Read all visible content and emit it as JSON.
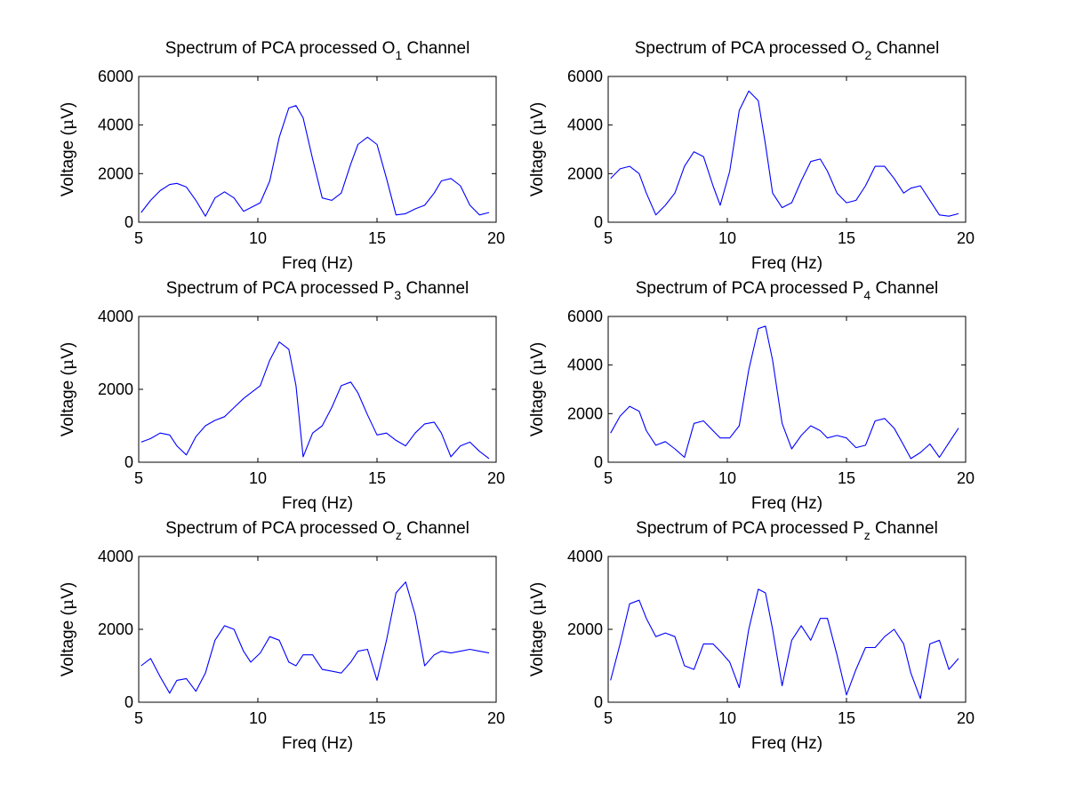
{
  "figure": {
    "background": "#ffffff",
    "line_color": "#0000ff"
  },
  "chart_data": [
    {
      "type": "line",
      "title": {
        "prefix": "Spectrum of PCA processed O",
        "sub": "1",
        "suffix": " Channel"
      },
      "xlabel": "Freq (Hz)",
      "ylabel": {
        "prefix": "Voltage (",
        "mu": "μ",
        "suffix": "V)"
      },
      "xlim": [
        5,
        20
      ],
      "ylim": [
        0,
        6000
      ],
      "xticks": [
        5,
        10,
        15,
        20
      ],
      "yticks": [
        0,
        2000,
        4000,
        6000
      ],
      "grid": false,
      "series": [
        {
          "x": [
            5.1,
            5.5,
            5.9,
            6.3,
            6.6,
            7.0,
            7.4,
            7.8,
            8.2,
            8.6,
            9.0,
            9.4,
            9.7,
            10.1,
            10.5,
            10.9,
            11.3,
            11.6,
            11.9,
            12.3,
            12.7,
            13.1,
            13.5,
            13.9,
            14.2,
            14.6,
            15.0,
            15.4,
            15.8,
            16.2,
            16.6,
            17.0,
            17.4,
            17.7,
            18.1,
            18.5,
            18.9,
            19.3,
            19.7
          ],
          "y": [
            400,
            900,
            1300,
            1550,
            1600,
            1450,
            900,
            250,
            1000,
            1250,
            1000,
            450,
            600,
            800,
            1700,
            3500,
            4700,
            4800,
            4300,
            2600,
            1000,
            900,
            1200,
            2400,
            3200,
            3500,
            3200,
            1800,
            300,
            350,
            550,
            700,
            1200,
            1700,
            1800,
            1500,
            700,
            300,
            400
          ]
        }
      ]
    },
    {
      "type": "line",
      "title": {
        "prefix": "Spectrum of PCA processed O",
        "sub": "2",
        "suffix": " Channel"
      },
      "xlabel": "Freq (Hz)",
      "ylabel": {
        "prefix": "Voltage (",
        "mu": "μ",
        "suffix": "V)"
      },
      "xlim": [
        5,
        20
      ],
      "ylim": [
        0,
        6000
      ],
      "xticks": [
        5,
        10,
        15,
        20
      ],
      "yticks": [
        0,
        2000,
        4000,
        6000
      ],
      "grid": false,
      "series": [
        {
          "x": [
            5.1,
            5.5,
            5.9,
            6.3,
            6.6,
            7.0,
            7.4,
            7.8,
            8.2,
            8.6,
            9.0,
            9.4,
            9.7,
            10.1,
            10.5,
            10.9,
            11.3,
            11.6,
            11.9,
            12.3,
            12.7,
            13.1,
            13.5,
            13.9,
            14.2,
            14.6,
            15.0,
            15.4,
            15.8,
            16.2,
            16.6,
            17.0,
            17.4,
            17.7,
            18.1,
            18.5,
            18.9,
            19.3,
            19.7
          ],
          "y": [
            1800,
            2200,
            2300,
            2000,
            1200,
            300,
            700,
            1200,
            2300,
            2900,
            2700,
            1500,
            700,
            2100,
            4600,
            5400,
            5000,
            3200,
            1200,
            600,
            800,
            1700,
            2500,
            2600,
            2100,
            1200,
            800,
            900,
            1500,
            2300,
            2300,
            1800,
            1200,
            1400,
            1500,
            900,
            300,
            250,
            350
          ]
        }
      ]
    },
    {
      "type": "line",
      "title": {
        "prefix": "Spectrum of PCA processed P",
        "sub": "3",
        "suffix": " Channel"
      },
      "xlabel": "Freq (Hz)",
      "ylabel": {
        "prefix": "Voltage (",
        "mu": "μ",
        "suffix": "V)"
      },
      "xlim": [
        5,
        20
      ],
      "ylim": [
        0,
        4000
      ],
      "xticks": [
        5,
        10,
        15,
        20
      ],
      "yticks": [
        0,
        2000,
        4000
      ],
      "grid": false,
      "series": [
        {
          "x": [
            5.1,
            5.5,
            5.9,
            6.3,
            6.6,
            7.0,
            7.4,
            7.8,
            8.2,
            8.6,
            9.0,
            9.4,
            9.7,
            10.1,
            10.5,
            10.9,
            11.3,
            11.6,
            11.9,
            12.3,
            12.7,
            13.1,
            13.5,
            13.9,
            14.2,
            14.6,
            15.0,
            15.4,
            15.8,
            16.2,
            16.6,
            17.0,
            17.4,
            17.7,
            18.1,
            18.5,
            18.9,
            19.3,
            19.7
          ],
          "y": [
            550,
            650,
            800,
            750,
            450,
            200,
            700,
            1000,
            1150,
            1250,
            1500,
            1750,
            1900,
            2100,
            2800,
            3300,
            3100,
            2100,
            150,
            800,
            1000,
            1500,
            2100,
            2200,
            1900,
            1300,
            750,
            800,
            600,
            450,
            800,
            1050,
            1100,
            800,
            150,
            450,
            550,
            300,
            100
          ]
        }
      ]
    },
    {
      "type": "line",
      "title": {
        "prefix": "Spectrum of PCA processed P",
        "sub": "4",
        "suffix": " Channel"
      },
      "xlabel": "Freq (Hz)",
      "ylabel": {
        "prefix": "Voltage (",
        "mu": "μ",
        "suffix": "V)"
      },
      "xlim": [
        5,
        20
      ],
      "ylim": [
        0,
        6000
      ],
      "xticks": [
        5,
        10,
        15,
        20
      ],
      "yticks": [
        0,
        2000,
        4000,
        6000
      ],
      "grid": false,
      "series": [
        {
          "x": [
            5.1,
            5.5,
            5.9,
            6.3,
            6.6,
            7.0,
            7.4,
            7.8,
            8.2,
            8.6,
            9.0,
            9.4,
            9.7,
            10.1,
            10.5,
            10.9,
            11.3,
            11.6,
            11.9,
            12.3,
            12.7,
            13.1,
            13.5,
            13.9,
            14.2,
            14.6,
            15.0,
            15.4,
            15.8,
            16.2,
            16.6,
            17.0,
            17.4,
            17.7,
            18.1,
            18.5,
            18.9,
            19.3,
            19.7
          ],
          "y": [
            1200,
            1900,
            2300,
            2100,
            1300,
            700,
            850,
            550,
            200,
            1600,
            1700,
            1300,
            1000,
            1000,
            1500,
            3800,
            5500,
            5600,
            4200,
            1600,
            550,
            1100,
            1500,
            1300,
            1000,
            1100,
            1000,
            600,
            700,
            1700,
            1800,
            1400,
            700,
            150,
            400,
            750,
            200,
            800,
            1400
          ]
        }
      ]
    },
    {
      "type": "line",
      "title": {
        "prefix": "Spectrum of PCA processed O",
        "sub": "z",
        "suffix": " Channel"
      },
      "xlabel": "Freq (Hz)",
      "ylabel": {
        "prefix": "Voltage (",
        "mu": "μ",
        "suffix": "V)"
      },
      "xlim": [
        5,
        20
      ],
      "ylim": [
        0,
        4000
      ],
      "xticks": [
        5,
        10,
        15,
        20
      ],
      "yticks": [
        0,
        2000,
        4000
      ],
      "grid": false,
      "series": [
        {
          "x": [
            5.1,
            5.5,
            5.9,
            6.3,
            6.6,
            7.0,
            7.4,
            7.8,
            8.2,
            8.6,
            9.0,
            9.4,
            9.7,
            10.1,
            10.5,
            10.9,
            11.3,
            11.6,
            11.9,
            12.3,
            12.7,
            13.1,
            13.5,
            13.9,
            14.2,
            14.6,
            15.0,
            15.4,
            15.8,
            16.2,
            16.6,
            17.0,
            17.4,
            17.7,
            18.1,
            18.5,
            18.9,
            19.3,
            19.7
          ],
          "y": [
            1000,
            1200,
            700,
            250,
            600,
            650,
            300,
            800,
            1700,
            2100,
            2000,
            1400,
            1100,
            1350,
            1800,
            1700,
            1100,
            1000,
            1300,
            1300,
            900,
            850,
            800,
            1100,
            1400,
            1450,
            600,
            1700,
            3000,
            3300,
            2400,
            1000,
            1300,
            1400,
            1350,
            1400,
            1450,
            1400,
            1350
          ]
        }
      ]
    },
    {
      "type": "line",
      "title": {
        "prefix": "Spectrum of PCA processed P",
        "sub": "z",
        "suffix": " Channel"
      },
      "xlabel": "Freq (Hz)",
      "ylabel": {
        "prefix": "Voltage (",
        "mu": "μ",
        "suffix": "V)"
      },
      "xlim": [
        5,
        20
      ],
      "ylim": [
        0,
        4000
      ],
      "xticks": [
        5,
        10,
        15,
        20
      ],
      "yticks": [
        0,
        2000,
        4000
      ],
      "grid": false,
      "series": [
        {
          "x": [
            5.1,
            5.5,
            5.9,
            6.3,
            6.6,
            7.0,
            7.4,
            7.8,
            8.2,
            8.6,
            9.0,
            9.4,
            9.7,
            10.1,
            10.5,
            10.9,
            11.3,
            11.6,
            11.9,
            12.3,
            12.7,
            13.1,
            13.5,
            13.9,
            14.2,
            14.6,
            15.0,
            15.4,
            15.8,
            16.2,
            16.6,
            17.0,
            17.4,
            17.7,
            18.1,
            18.5,
            18.9,
            19.3,
            19.7
          ],
          "y": [
            600,
            1600,
            2700,
            2800,
            2300,
            1800,
            1900,
            1800,
            1000,
            900,
            1600,
            1600,
            1400,
            1100,
            400,
            2000,
            3100,
            3000,
            2000,
            450,
            1700,
            2100,
            1700,
            2300,
            2300,
            1300,
            200,
            900,
            1500,
            1500,
            1800,
            2000,
            1600,
            800,
            100,
            1600,
            1700,
            900,
            1200
          ]
        }
      ]
    }
  ]
}
